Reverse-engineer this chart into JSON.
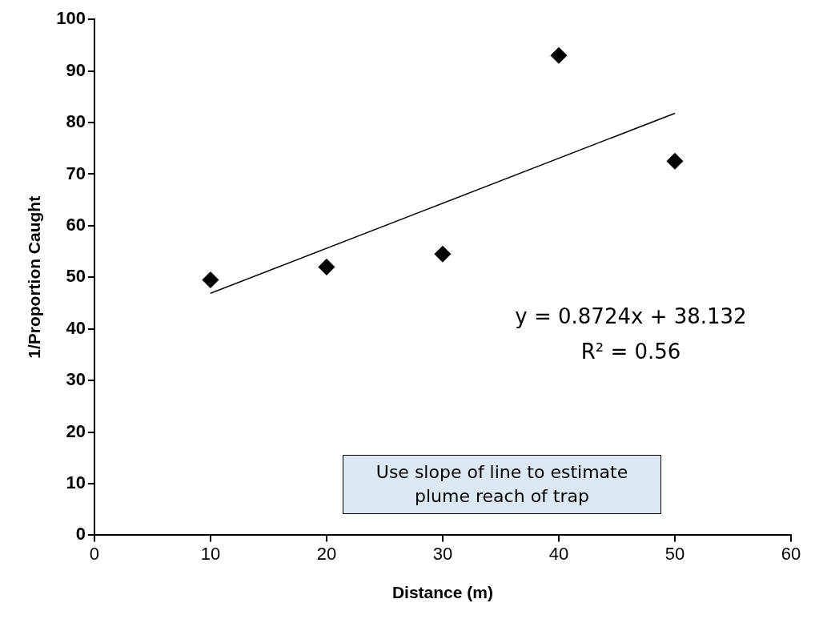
{
  "chart_data": {
    "type": "scatter",
    "xlabel": "Distance (m)",
    "ylabel": "1/Proportion Caught",
    "x": [
      10,
      20,
      30,
      40,
      50
    ],
    "series": [
      {
        "type": "scatter",
        "color": "#000000",
        "values": [
          49.5,
          52,
          54.5,
          93,
          72.5
        ],
        "marker": "diamond"
      },
      {
        "type": "line",
        "color": "#000000",
        "x": [
          10,
          50
        ],
        "values": [
          46.9,
          81.8
        ],
        "marker": "none"
      }
    ],
    "xlim": [
      0,
      60
    ],
    "xticks": [
      0,
      10,
      20,
      30,
      40,
      50,
      60
    ],
    "ylim": [
      0,
      100
    ],
    "yticks": [
      0,
      10,
      20,
      30,
      40,
      50,
      60,
      70,
      80,
      90,
      100
    ],
    "grid": false,
    "legend": false,
    "annotations": [
      "y = 0.8724x + 38.132\nR² = 0.56",
      "Use slope of line to estimate plume reach of trap"
    ]
  }
}
